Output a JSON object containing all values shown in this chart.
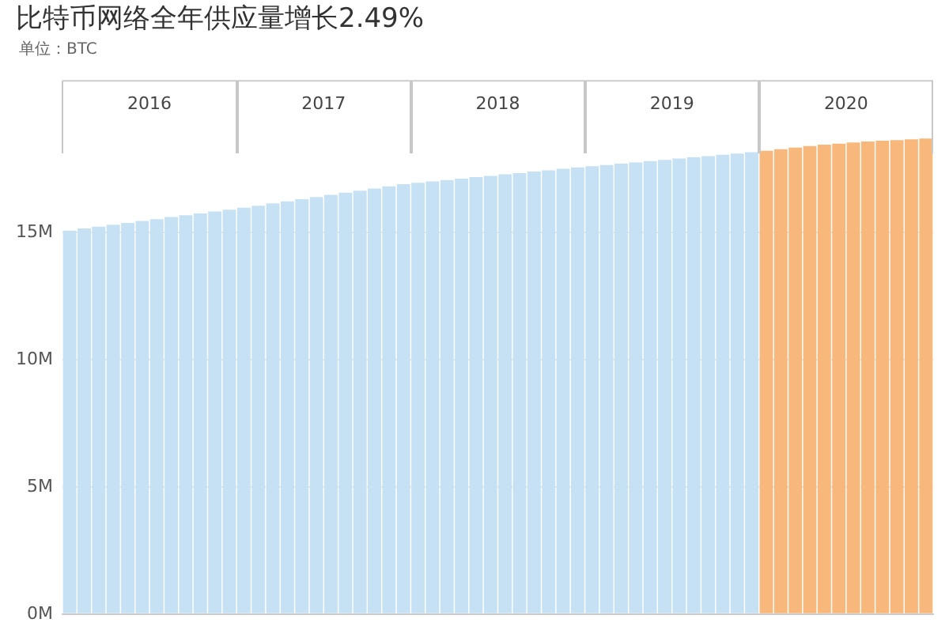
{
  "chart_data": {
    "type": "bar",
    "title": "比特币网络全年供应量增长2.49%",
    "subtitle": "单位：BTC",
    "categories": [
      null,
      null,
      null,
      null,
      null,
      null,
      null,
      null,
      null,
      null,
      null,
      null,
      null,
      null,
      null,
      null,
      null,
      null,
      null,
      null,
      null,
      null,
      null,
      null,
      null,
      null,
      null,
      null,
      null,
      null,
      null,
      null,
      null,
      null,
      null,
      null,
      null,
      null,
      null,
      null,
      null,
      null,
      null,
      null,
      null,
      null,
      null,
      null,
      null,
      null,
      null,
      null,
      null,
      null,
      null,
      null,
      null,
      null,
      null,
      null
    ],
    "values": [
      15.08,
      15.16,
      15.23,
      15.31,
      15.38,
      15.46,
      15.53,
      15.61,
      15.68,
      15.75,
      15.83,
      15.9,
      15.98,
      16.06,
      16.15,
      16.23,
      16.31,
      16.4,
      16.48,
      16.57,
      16.65,
      16.73,
      16.82,
      16.9,
      16.96,
      17.01,
      17.07,
      17.12,
      17.18,
      17.23,
      17.29,
      17.34,
      17.4,
      17.45,
      17.51,
      17.56,
      17.61,
      17.66,
      17.71,
      17.76,
      17.81,
      17.86,
      17.91,
      17.96,
      18.01,
      18.06,
      18.11,
      18.16,
      18.22,
      18.28,
      18.34,
      18.4,
      18.46,
      18.5,
      18.54,
      18.58,
      18.61,
      18.64,
      18.67,
      18.7
    ],
    "colors": [
      "#c6e1f3",
      "#c6e1f3",
      "#c6e1f3",
      "#c6e1f3",
      "#c6e1f3",
      "#c6e1f3",
      "#c6e1f3",
      "#c6e1f3",
      "#c6e1f3",
      "#c6e1f3",
      "#c6e1f3",
      "#c6e1f3",
      "#c6e1f3",
      "#c6e1f3",
      "#c6e1f3",
      "#c6e1f3",
      "#c6e1f3",
      "#c6e1f3",
      "#c6e1f3",
      "#c6e1f3",
      "#c6e1f3",
      "#c6e1f3",
      "#c6e1f3",
      "#c6e1f3",
      "#c6e1f3",
      "#c6e1f3",
      "#c6e1f3",
      "#c6e1f3",
      "#c6e1f3",
      "#c6e1f3",
      "#c6e1f3",
      "#c6e1f3",
      "#c6e1f3",
      "#c6e1f3",
      "#c6e1f3",
      "#c6e1f3",
      "#c6e1f3",
      "#c6e1f3",
      "#c6e1f3",
      "#c6e1f3",
      "#c6e1f3",
      "#c6e1f3",
      "#c6e1f3",
      "#c6e1f3",
      "#c6e1f3",
      "#c6e1f3",
      "#c6e1f3",
      "#c6e1f3",
      "#f8b87c",
      "#f8b87c",
      "#f8b87c",
      "#f8b87c",
      "#f8b87c",
      "#f8b87c",
      "#f8b87c",
      "#f8b87c",
      "#f8b87c",
      "#f8b87c",
      "#f8b87c",
      "#f8b87c"
    ],
    "ylim": [
      0,
      21
    ],
    "yticks": [
      {
        "value": 0,
        "label": "0M"
      },
      {
        "value": 5,
        "label": "5M"
      },
      {
        "value": 10,
        "label": "10M"
      },
      {
        "value": 15,
        "label": "15M"
      }
    ],
    "grid": "y",
    "legend": false,
    "annotations": [
      "2016",
      "2017",
      "2018",
      "2019",
      "2020"
    ]
  }
}
